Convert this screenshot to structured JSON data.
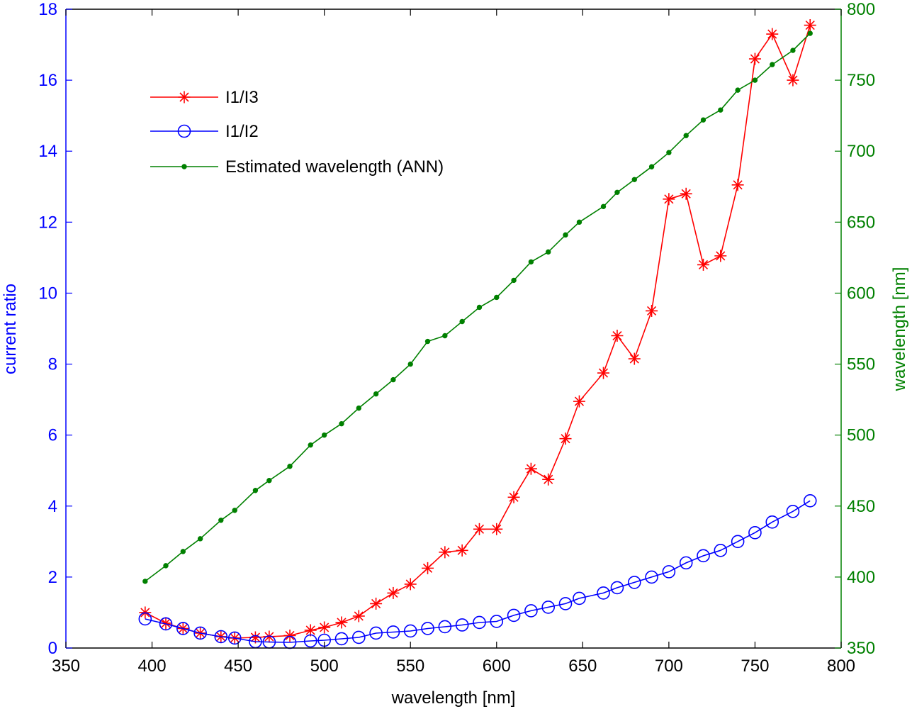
{
  "chart_data": {
    "type": "line",
    "xlabel": "wavelength [nm]",
    "ylabel_left": "current ratio",
    "ylabel_right": "wavelength [nm]",
    "xlim": [
      350,
      800
    ],
    "ylim_left": [
      0,
      18
    ],
    "ylim_right": [
      350,
      800
    ],
    "x_ticks": [
      "350",
      "400",
      "450",
      "500",
      "550",
      "600",
      "650",
      "700",
      "750",
      "800"
    ],
    "y_left_ticks": [
      "0",
      "2",
      "4",
      "6",
      "8",
      "10",
      "12",
      "14",
      "16",
      "18"
    ],
    "y_right_ticks": [
      "350",
      "400",
      "450",
      "500",
      "550",
      "600",
      "650",
      "700",
      "750",
      "800"
    ],
    "grid": false,
    "legend_position": "top-left",
    "colors": {
      "left_axis": "#0000ff",
      "right_axis": "#008000",
      "bottom_axis": "#000000"
    },
    "series": [
      {
        "name": "I1/I3",
        "axis": "left",
        "color": "#ff0000",
        "marker": "asterisk",
        "x": [
          396,
          408,
          418,
          428,
          440,
          448,
          460,
          468,
          480,
          492,
          500,
          510,
          520,
          530,
          540,
          550,
          560,
          570,
          580,
          590,
          600,
          610,
          620,
          630,
          640,
          648,
          662,
          670,
          680,
          690,
          700,
          710,
          720,
          730,
          740,
          750,
          760,
          772,
          782
        ],
        "values": [
          1.0,
          0.7,
          0.55,
          0.42,
          0.32,
          0.28,
          0.3,
          0.32,
          0.35,
          0.5,
          0.58,
          0.72,
          0.9,
          1.25,
          1.55,
          1.8,
          2.25,
          2.7,
          2.75,
          3.35,
          3.35,
          4.25,
          5.05,
          4.75,
          5.9,
          6.95,
          7.75,
          8.8,
          8.15,
          9.5,
          12.65,
          12.8,
          10.8,
          11.05,
          13.05,
          16.6,
          17.3,
          16.0,
          17.55
        ]
      },
      {
        "name": "I1/I2",
        "axis": "left",
        "color": "#0000ff",
        "marker": "circle",
        "x": [
          396,
          408,
          418,
          428,
          440,
          448,
          460,
          468,
          480,
          492,
          500,
          510,
          520,
          530,
          540,
          550,
          560,
          570,
          580,
          590,
          600,
          610,
          620,
          630,
          640,
          648,
          662,
          670,
          680,
          690,
          700,
          710,
          720,
          730,
          740,
          750,
          760,
          772,
          782
        ],
        "values": [
          0.82,
          0.68,
          0.55,
          0.42,
          0.32,
          0.28,
          0.18,
          0.17,
          0.16,
          0.2,
          0.22,
          0.26,
          0.3,
          0.42,
          0.45,
          0.48,
          0.55,
          0.6,
          0.65,
          0.72,
          0.75,
          0.92,
          1.05,
          1.15,
          1.25,
          1.4,
          1.55,
          1.7,
          1.85,
          2.0,
          2.15,
          2.4,
          2.6,
          2.75,
          3.0,
          3.25,
          3.55,
          3.85,
          4.15
        ]
      },
      {
        "name": "Estimated wavelength (ANN)",
        "axis": "right",
        "color": "#008000",
        "marker": "dot",
        "x": [
          396,
          408,
          418,
          428,
          440,
          448,
          460,
          468,
          480,
          492,
          500,
          510,
          520,
          530,
          540,
          550,
          560,
          570,
          580,
          590,
          600,
          610,
          620,
          630,
          640,
          648,
          662,
          670,
          680,
          690,
          700,
          710,
          720,
          730,
          740,
          750,
          760,
          772,
          782
        ],
        "values": [
          397,
          408,
          418,
          427,
          440,
          447,
          461,
          468,
          478,
          493,
          500,
          508,
          519,
          529,
          539,
          550,
          566,
          570,
          580,
          590,
          597,
          609,
          622,
          629,
          641,
          650,
          661,
          671,
          680,
          689,
          699,
          711,
          722,
          729,
          743,
          750,
          761,
          771,
          783
        ]
      }
    ]
  }
}
